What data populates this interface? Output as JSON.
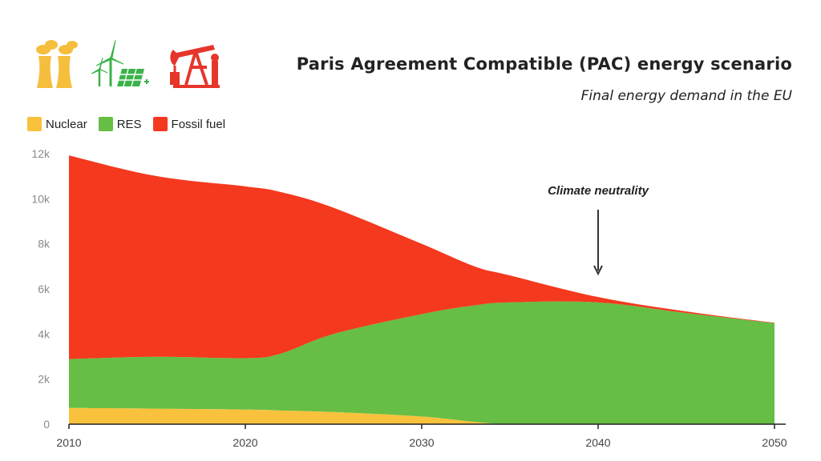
{
  "header": {
    "title": "Paris Agreement Compatible (PAC) energy scenario",
    "subtitle": "Final energy demand in the EU"
  },
  "icons": [
    {
      "name": "nuclear-plant-icon",
      "color": "#F5BE3C"
    },
    {
      "name": "wind-solar-icon",
      "color": "#3BB34A"
    },
    {
      "name": "oil-pump-icon",
      "color": "#E6352B"
    }
  ],
  "chart_data": {
    "type": "area",
    "stacked": true,
    "x": [
      2010,
      2015,
      2020,
      2022,
      2025,
      2030,
      2033,
      2035,
      2040,
      2045,
      2050
    ],
    "series": [
      {
        "name": "Nuclear",
        "color": "#F9C23C",
        "values": [
          720,
          690,
          650,
          610,
          540,
          340,
          100,
          0,
          0,
          0,
          0
        ]
      },
      {
        "name": "RES",
        "color": "#66BE45",
        "values": [
          2170,
          2300,
          2280,
          2520,
          3460,
          4540,
          5170,
          5400,
          5400,
          4930,
          4480
        ]
      },
      {
        "name": "Fossil fuel",
        "color": "#F4391E",
        "values": [
          9030,
          8010,
          7620,
          7170,
          5600,
          3120,
          1730,
          1200,
          240,
          70,
          20
        ]
      }
    ],
    "xticks": [
      "2010",
      "2020",
      "2030",
      "2040",
      "2050"
    ],
    "yticks": [
      "0",
      "2k",
      "4k",
      "6k",
      "8k",
      "10k",
      "12k"
    ],
    "ylim": [
      0,
      12000
    ],
    "xlim": [
      2010,
      2050
    ],
    "annotation": {
      "text": "Climate neutrality",
      "x": 2040
    },
    "legend_position": "top-left",
    "grid": false
  }
}
